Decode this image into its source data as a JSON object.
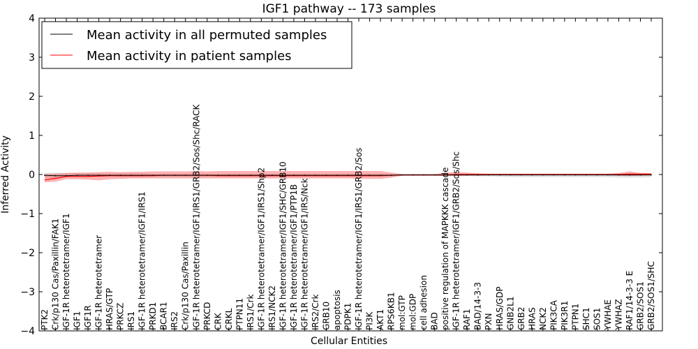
{
  "chart_data": {
    "type": "line",
    "title": "IGF1 pathway -- 173 samples",
    "xlabel": "Cellular Entities",
    "ylabel": "Inferred Activity",
    "ylim": [
      -4,
      4
    ],
    "yticks": [
      -4,
      -3,
      -2,
      -1,
      0,
      1,
      2,
      3,
      4
    ],
    "ytick_labels": [
      "−4",
      "−3",
      "−2",
      "−1",
      "0",
      "1",
      "2",
      "3",
      "4"
    ],
    "legend_position": "upper-left",
    "categories": [
      "PTK2",
      "Crk/p130 Cas/Paxillin/FAK1",
      "IGF-1R heterotetramer/IGF1",
      "IGF1",
      "IGF1R",
      "IGF-1R heterotetramer",
      "HRAS/GTP",
      "PRKCZ",
      "IRS1",
      "IGF-1R heterotetramer/IGF1/IRS1",
      "PRKD1",
      "BCAR1",
      "IRS2",
      "Crk/p130 Cas/Paxillin",
      "IGF-1R heterotetramer/IGF1/IRS1/GRB2/Sos/Shc/RACK",
      "PRKCD",
      "CRK",
      "CRKL",
      "PTPN11",
      "IRS1/Crk",
      "IGF-1R heterotetramer/IGF1/IRS1/Shp2",
      "IRS1/NCK2",
      "IGF-1R heterotetramer/IGF1/SHC/GRB10",
      "IGF-1R heterotetramer/IGF1/PTP1B",
      "IGF-1R heterotetramer/IGF1/IRS/Nck",
      "IRS2/Crk",
      "GRB10",
      "apoptosis",
      "PDPK1",
      "IGF-1R heterotetramer/IGF1/IRS1/GRB2/Sos",
      "PI3K",
      "AKT1",
      "RPS6KB1",
      "mol:GTP",
      "mol:GDP",
      "cell adhesion",
      "BAD",
      "positive regulation of MAPKKK cascade",
      "IGF-1R heterotetramer/IGF1/GRB2/Sos/Shc",
      "RAF1",
      "BAD/14-3-3",
      "PXN",
      "HRAS/GDP",
      "GNB2L1",
      "GRB2",
      "HRAS",
      "NCK2",
      "PIK3CA",
      "PIK3R1",
      "PTPN1",
      "SHC1",
      "SOS1",
      "YWHAE",
      "YWHAZ",
      "RAF1/14-3-3 E",
      "GRB2/SOS1",
      "GRB2/SOS1/SHC"
    ],
    "series": [
      {
        "name": "Mean activity in all permuted samples",
        "color": "#000000",
        "values": [
          -0.02,
          -0.03,
          -0.03,
          -0.02,
          -0.02,
          -0.02,
          -0.02,
          -0.02,
          -0.02,
          -0.02,
          -0.02,
          -0.02,
          -0.02,
          -0.02,
          -0.02,
          -0.02,
          -0.02,
          -0.02,
          -0.02,
          -0.02,
          -0.02,
          -0.02,
          -0.02,
          -0.02,
          -0.02,
          -0.02,
          -0.02,
          -0.02,
          -0.02,
          -0.02,
          -0.02,
          -0.02,
          -0.02,
          -0.01,
          -0.01,
          -0.01,
          -0.01,
          -0.01,
          -0.01,
          -0.01,
          -0.01,
          -0.01,
          -0.01,
          -0.01,
          -0.01,
          -0.01,
          -0.01,
          -0.01,
          -0.01,
          -0.01,
          -0.01,
          -0.01,
          -0.01,
          -0.01,
          -0.01,
          -0.01,
          -0.01
        ],
        "band_low": [
          -0.08,
          -0.1,
          -0.07,
          -0.07,
          -0.07,
          -0.07,
          -0.06,
          -0.07,
          -0.07,
          -0.07,
          -0.06,
          -0.06,
          -0.06,
          -0.06,
          -0.07,
          -0.06,
          -0.06,
          -0.06,
          -0.06,
          -0.06,
          -0.06,
          -0.06,
          -0.06,
          -0.06,
          -0.06,
          -0.06,
          -0.06,
          -0.06,
          -0.06,
          -0.06,
          -0.06,
          -0.06,
          -0.05,
          -0.03,
          -0.03,
          -0.03,
          -0.03,
          -0.04,
          -0.04,
          -0.04,
          -0.05,
          -0.05,
          -0.06,
          -0.07,
          -0.07,
          -0.07,
          -0.07,
          -0.07,
          -0.07,
          -0.07,
          -0.07,
          -0.07,
          -0.07,
          -0.08,
          -0.08,
          -0.08,
          -0.07
        ],
        "band_high": [
          0.04,
          0.05,
          0.03,
          0.03,
          0.03,
          0.03,
          0.02,
          0.03,
          0.03,
          0.03,
          0.02,
          0.02,
          0.02,
          0.02,
          0.03,
          0.02,
          0.02,
          0.02,
          0.02,
          0.02,
          0.02,
          0.02,
          0.02,
          0.02,
          0.02,
          0.02,
          0.02,
          0.02,
          0.02,
          0.02,
          0.02,
          0.02,
          0.02,
          0.01,
          0.01,
          0.01,
          0.01,
          0.02,
          0.02,
          0.02,
          0.02,
          0.02,
          0.02,
          0.02,
          0.02,
          0.02,
          0.02,
          0.02,
          0.02,
          0.02,
          0.02,
          0.02,
          0.02,
          0.02,
          0.02,
          0.02,
          0.02
        ]
      },
      {
        "name": "Mean activity in patient samples",
        "color": "#ff0000",
        "values": [
          -0.14,
          -0.1,
          -0.05,
          -0.05,
          -0.05,
          -0.04,
          -0.03,
          -0.03,
          -0.03,
          -0.03,
          -0.03,
          -0.02,
          -0.02,
          -0.02,
          -0.02,
          -0.02,
          -0.03,
          -0.03,
          -0.03,
          -0.03,
          -0.03,
          -0.03,
          -0.03,
          -0.03,
          -0.03,
          -0.03,
          -0.03,
          -0.03,
          -0.03,
          -0.03,
          -0.03,
          -0.03,
          -0.02,
          -0.01,
          -0.01,
          -0.01,
          -0.01,
          -0.01,
          0.0,
          0.0,
          0.0,
          0.0,
          0.0,
          0.0,
          0.0,
          0.0,
          0.0,
          0.0,
          0.0,
          0.0,
          0.0,
          0.0,
          0.0,
          0.0,
          0.01,
          0.01,
          0.01
        ],
        "band_low": [
          -0.2,
          -0.18,
          -0.12,
          -0.12,
          -0.13,
          -0.15,
          -0.12,
          -0.11,
          -0.1,
          -0.1,
          -0.1,
          -0.1,
          -0.1,
          -0.1,
          -0.1,
          -0.1,
          -0.1,
          -0.1,
          -0.1,
          -0.1,
          -0.1,
          -0.1,
          -0.1,
          -0.1,
          -0.1,
          -0.1,
          -0.1,
          -0.1,
          -0.1,
          -0.11,
          -0.11,
          -0.11,
          -0.08,
          -0.03,
          -0.03,
          -0.03,
          -0.03,
          -0.04,
          -0.04,
          -0.03,
          -0.03,
          -0.02,
          -0.02,
          -0.02,
          -0.02,
          -0.02,
          -0.02,
          -0.02,
          -0.02,
          -0.02,
          -0.02,
          -0.02,
          -0.02,
          -0.03,
          -0.04,
          -0.03,
          -0.02
        ],
        "band_high": [
          0.01,
          0.02,
          0.04,
          0.05,
          0.05,
          0.06,
          0.07,
          0.06,
          0.07,
          0.07,
          0.08,
          0.08,
          0.08,
          0.08,
          0.09,
          0.08,
          0.09,
          0.09,
          0.09,
          0.09,
          0.09,
          0.09,
          0.09,
          0.09,
          0.09,
          0.09,
          0.09,
          0.09,
          0.09,
          0.09,
          0.09,
          0.09,
          0.05,
          0.01,
          0.01,
          0.01,
          0.01,
          0.05,
          0.06,
          0.05,
          0.03,
          0.02,
          0.02,
          0.02,
          0.02,
          0.02,
          0.02,
          0.02,
          0.02,
          0.02,
          0.02,
          0.02,
          0.02,
          0.04,
          0.08,
          0.04,
          0.03
        ]
      }
    ]
  }
}
